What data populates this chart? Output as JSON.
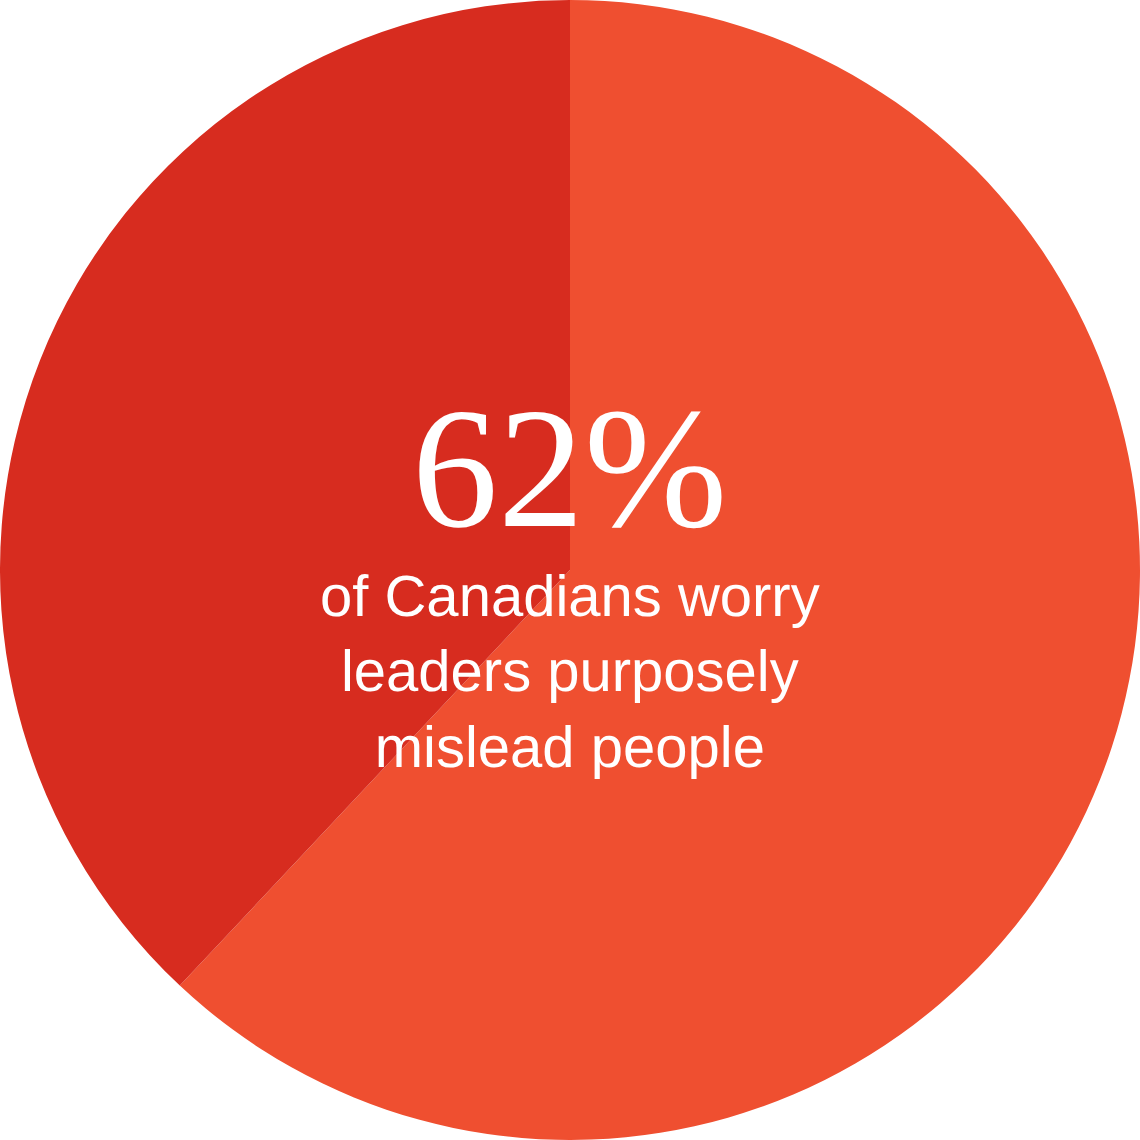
{
  "chart_data": {
    "type": "pie",
    "categories": [
      null,
      null
    ],
    "values": [
      62,
      38
    ],
    "colors": [
      "#ef4f30",
      "#d72c1f"
    ],
    "annotations": [
      "62%",
      "of Canadians worry\nleaders purposely\nmislead people"
    ]
  }
}
